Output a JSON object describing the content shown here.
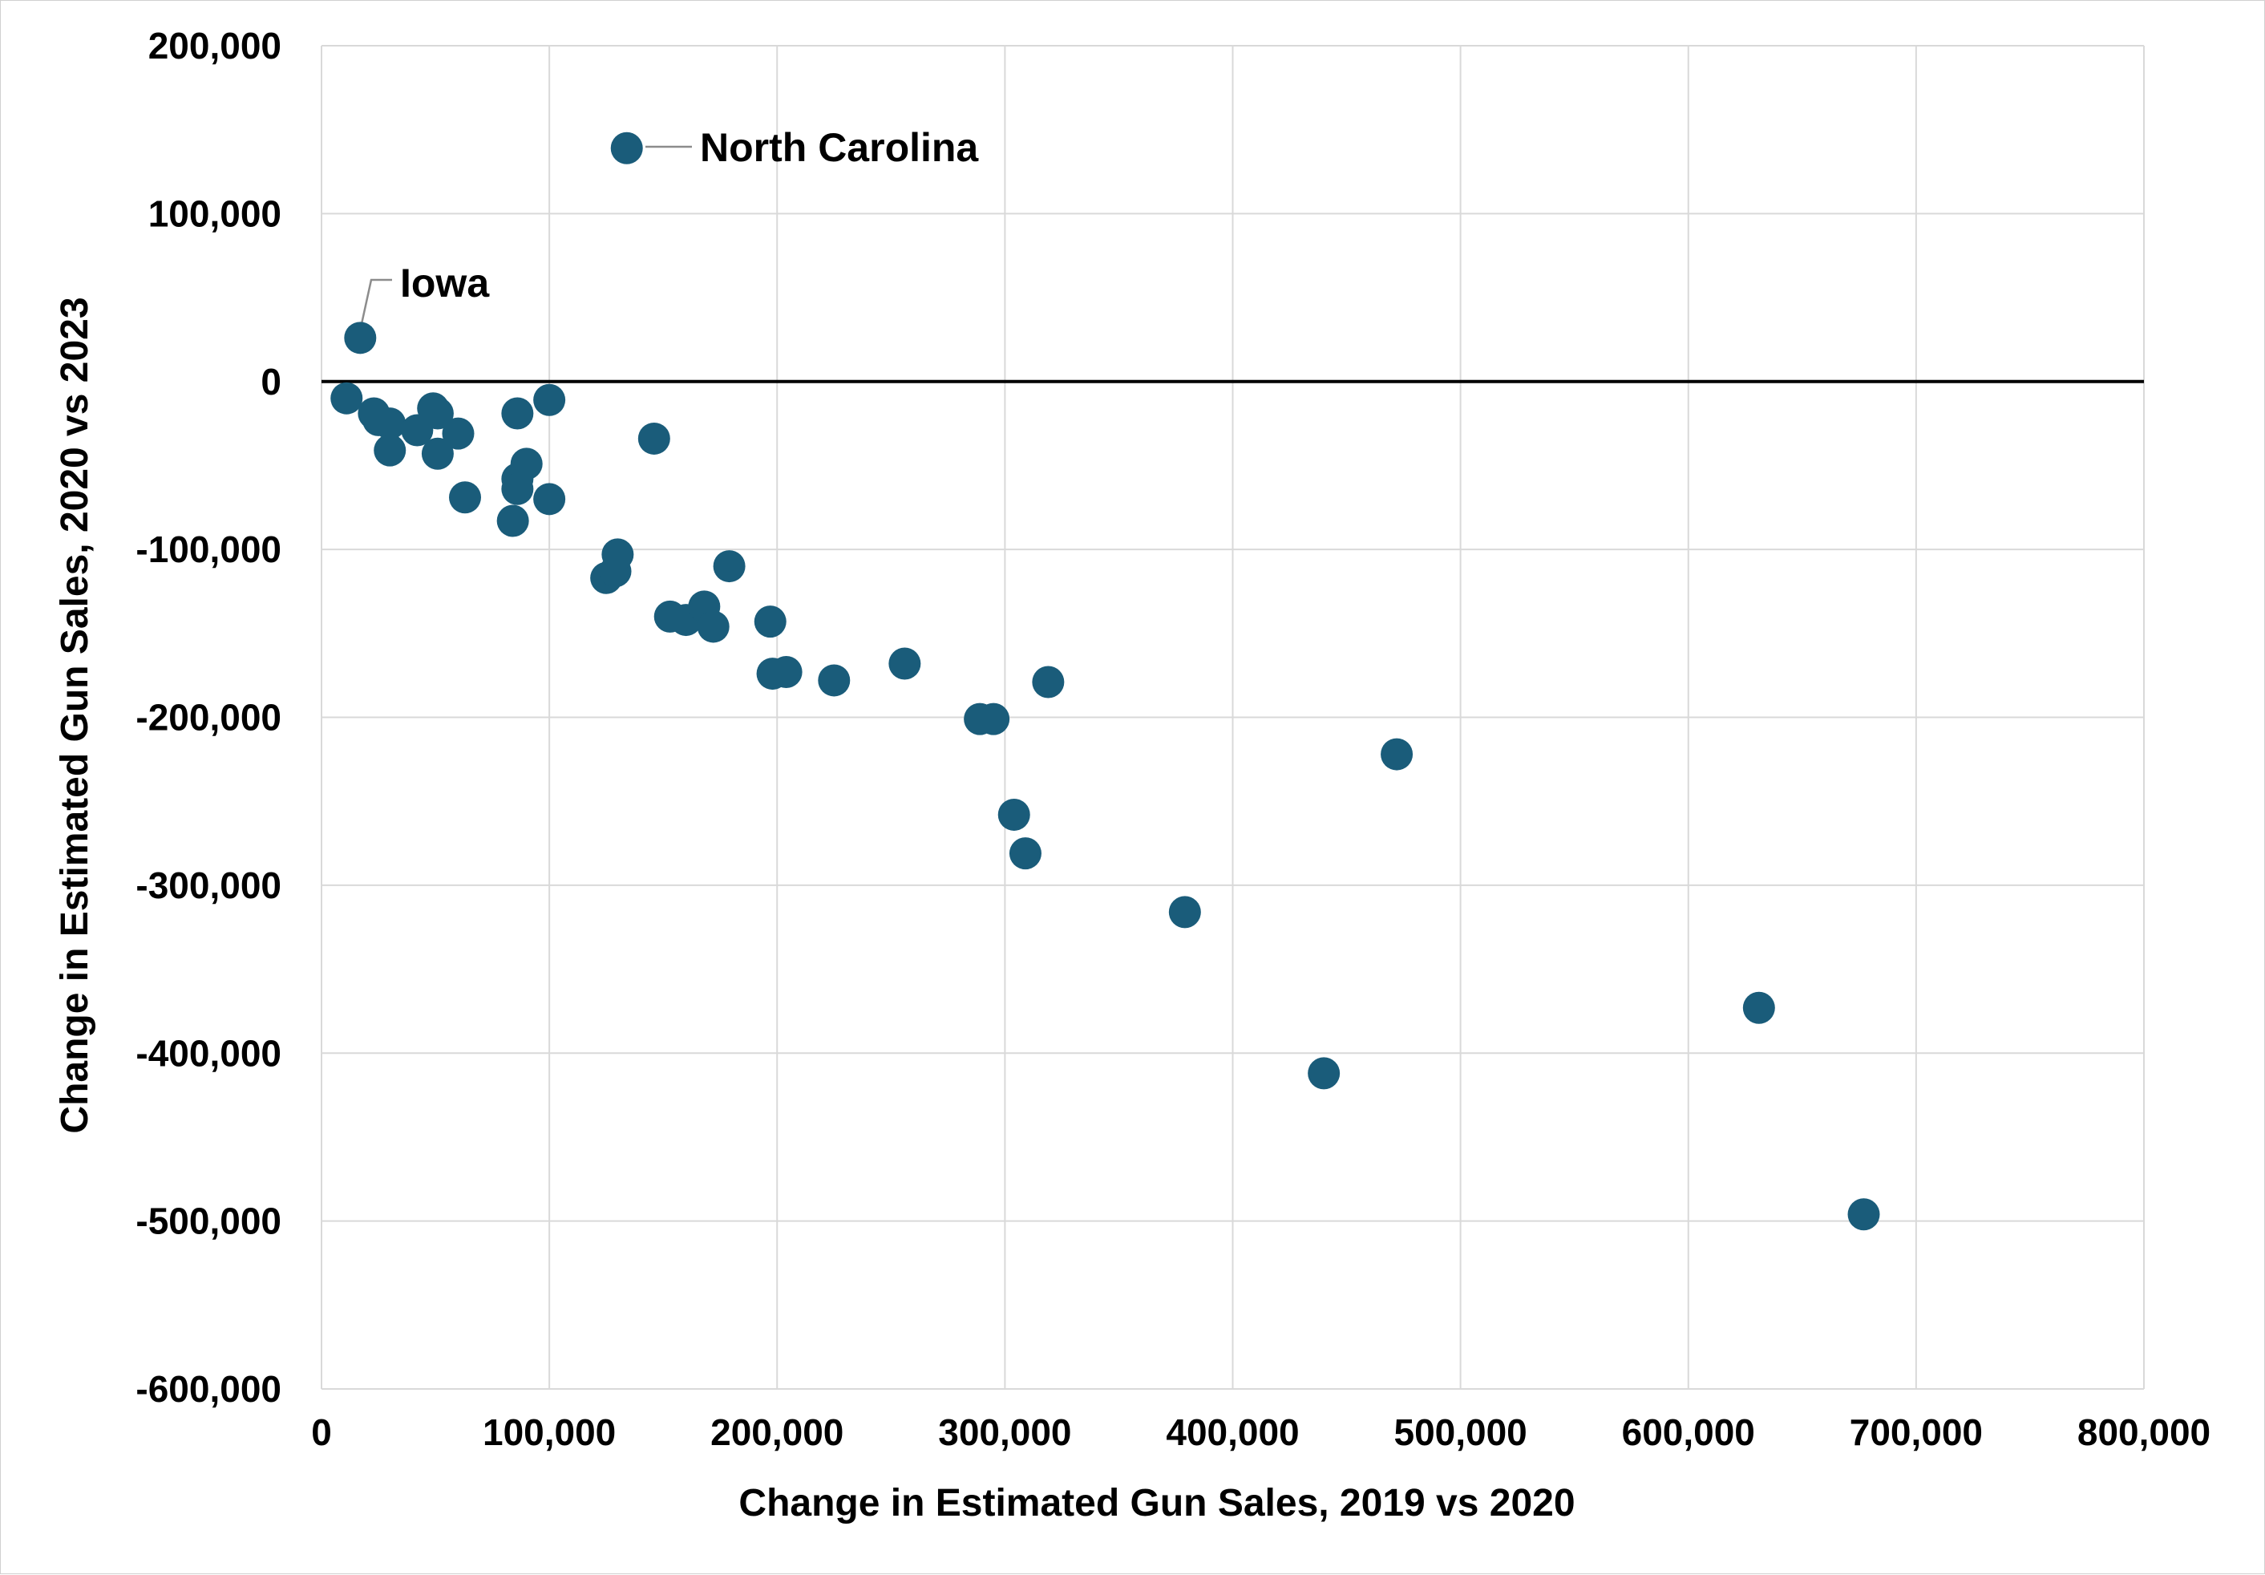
{
  "chart_data": {
    "type": "scatter",
    "title": "",
    "xlabel": "Change in Estimated Gun Sales, 2019 vs 2020",
    "ylabel": "Change in Estimated Gun Sales, 2020 vs 2023",
    "xlim": [
      0,
      800000
    ],
    "ylim": [
      -600000,
      200000
    ],
    "x_ticks": [
      0,
      100000,
      200000,
      300000,
      400000,
      500000,
      600000,
      700000,
      800000
    ],
    "y_ticks": [
      200000,
      100000,
      0,
      -100000,
      -200000,
      -300000,
      -400000,
      -500000,
      -600000
    ],
    "x_tick_labels": [
      "0",
      "100,000",
      "200,000",
      "300,000",
      "400,000",
      "500,000",
      "600,000",
      "700,000",
      "800,000"
    ],
    "y_tick_labels": [
      "200,000",
      "100,000",
      "0",
      "-100,000",
      "-200,000",
      "-300,000",
      "-400,000",
      "-500,000",
      "-600,000"
    ],
    "grid": true,
    "zero_line": true,
    "marker_color": "#1a5c7a",
    "points": [
      {
        "x": 17000,
        "y": 26000
      },
      {
        "x": 11000,
        "y": -10000
      },
      {
        "x": 23000,
        "y": -19000
      },
      {
        "x": 25000,
        "y": -23000
      },
      {
        "x": 30000,
        "y": -25000
      },
      {
        "x": 30000,
        "y": -41000
      },
      {
        "x": 42000,
        "y": -29000
      },
      {
        "x": 49000,
        "y": -16000
      },
      {
        "x": 51000,
        "y": -19000
      },
      {
        "x": 51000,
        "y": -43000
      },
      {
        "x": 60000,
        "y": -31000
      },
      {
        "x": 63000,
        "y": -69000
      },
      {
        "x": 84000,
        "y": -83000
      },
      {
        "x": 86000,
        "y": -19000
      },
      {
        "x": 86000,
        "y": -58000
      },
      {
        "x": 86000,
        "y": -64000
      },
      {
        "x": 90000,
        "y": -49000
      },
      {
        "x": 100000,
        "y": -11000
      },
      {
        "x": 100000,
        "y": -70000
      },
      {
        "x": 125000,
        "y": -117000
      },
      {
        "x": 129000,
        "y": -113000
      },
      {
        "x": 130000,
        "y": -103000
      },
      {
        "x": 134000,
        "y": 139000
      },
      {
        "x": 146000,
        "y": -34000
      },
      {
        "x": 153000,
        "y": -140000
      },
      {
        "x": 160000,
        "y": -142000
      },
      {
        "x": 168000,
        "y": -134000
      },
      {
        "x": 172000,
        "y": -146000
      },
      {
        "x": 179000,
        "y": -110000
      },
      {
        "x": 197000,
        "y": -143000
      },
      {
        "x": 198000,
        "y": -174000
      },
      {
        "x": 204000,
        "y": -173000
      },
      {
        "x": 225000,
        "y": -178000
      },
      {
        "x": 256000,
        "y": -168000
      },
      {
        "x": 289000,
        "y": -201000
      },
      {
        "x": 295000,
        "y": -201000
      },
      {
        "x": 304000,
        "y": -258000
      },
      {
        "x": 309000,
        "y": -281000
      },
      {
        "x": 319000,
        "y": -179000
      },
      {
        "x": 379000,
        "y": -316000
      },
      {
        "x": 440000,
        "y": -412000
      },
      {
        "x": 472000,
        "y": -222000
      },
      {
        "x": 631000,
        "y": -373000
      },
      {
        "x": 677000,
        "y": -496000
      }
    ],
    "annotations": [
      {
        "label": "North Carolina",
        "x": 134000,
        "y": 139000
      },
      {
        "label": "Iowa",
        "x": 17000,
        "y": 26000
      }
    ]
  }
}
